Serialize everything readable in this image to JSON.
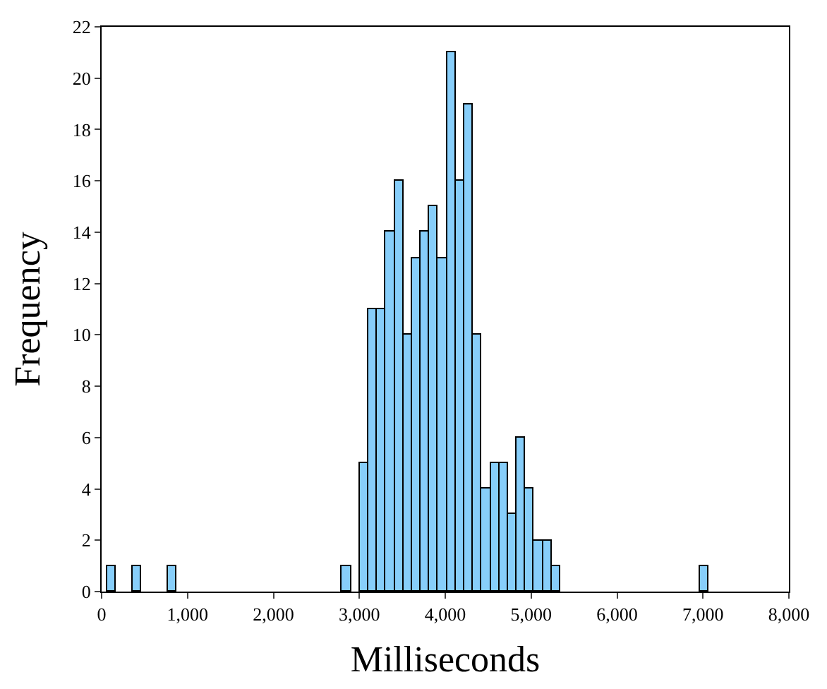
{
  "chart_data": {
    "type": "histogram",
    "xlabel": "Milliseconds",
    "ylabel": "Frequency",
    "color": "#87cefa",
    "bins": [
      60,
      161.5,
      263,
      364.5,
      466,
      567.5,
      669,
      770.5,
      872,
      973.5,
      1075,
      1176.5,
      1278,
      1379.5,
      1481,
      1582.5,
      1684,
      1785.5,
      1887,
      1988.5,
      2090,
      2191.5,
      2293,
      2394.5,
      2496,
      2597.5,
      2699,
      2800.5,
      2902,
      3003.5,
      3105,
      3206.5,
      3308,
      3409.5,
      3511,
      3612.5,
      3714,
      3815.5,
      3917,
      4018.5,
      4120,
      4221.5,
      4323,
      4424.5,
      4526,
      4627.5,
      4729,
      4830.5,
      4932,
      5033.5,
      5135,
      5236.5,
      5338,
      5439.5,
      5541,
      5642.5,
      5744,
      5845.5,
      5947,
      6048.5,
      6150,
      6251.5,
      6353,
      6454.5,
      6556,
      6657.5,
      6759,
      6860.5,
      6962,
      7063.5
    ],
    "values": [
      1,
      0,
      0,
      1,
      0,
      0,
      0,
      1,
      0,
      0,
      0,
      0,
      0,
      0,
      0,
      0,
      0,
      0,
      0,
      0,
      0,
      0,
      0,
      0,
      0,
      0,
      0,
      1,
      0,
      5,
      11,
      11,
      14,
      16,
      10,
      13,
      14,
      15,
      13,
      21,
      16,
      19,
      10,
      4,
      5,
      5,
      3,
      6,
      4,
      2,
      2,
      1,
      0,
      0,
      0,
      0,
      0,
      0,
      0,
      0,
      0,
      0,
      0,
      0,
      0,
      0,
      0,
      0,
      1
    ],
    "xlim": [
      0,
      8000
    ],
    "ylim": [
      0,
      22
    ],
    "xticks": [
      0,
      {
        "value": 1000,
        "label": "1,000"
      },
      {
        "value": 2000,
        "label": "2,000"
      },
      {
        "value": 3000,
        "label": "3,000"
      },
      {
        "value": 4000,
        "label": "4,000"
      },
      {
        "value": 5000,
        "label": "5,000"
      },
      {
        "value": 6000,
        "label": "6,000"
      },
      {
        "value": 7000,
        "label": "7,000"
      },
      {
        "value": 8000,
        "label": "8,000"
      }
    ],
    "yticks": [
      0,
      2,
      4,
      6,
      8,
      10,
      12,
      14,
      16,
      18,
      20,
      22
    ]
  }
}
